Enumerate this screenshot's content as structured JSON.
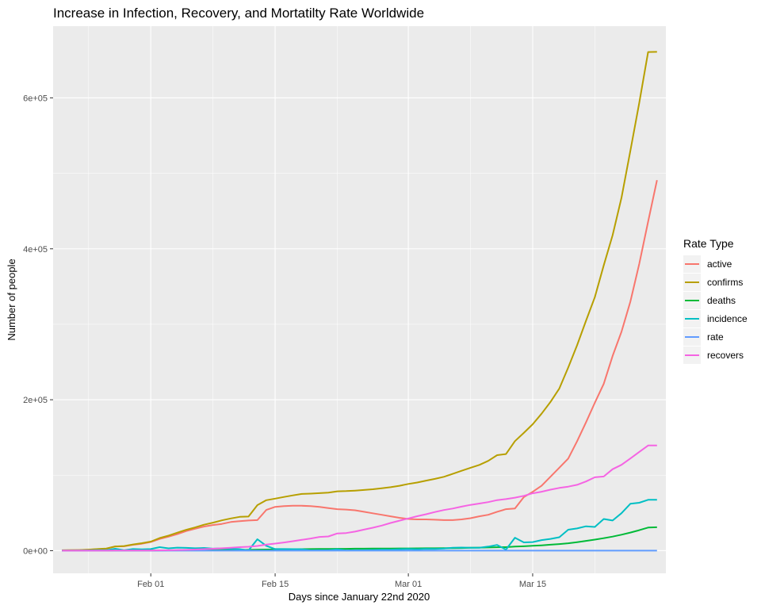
{
  "chart_data": {
    "type": "line",
    "title": "Increase in Infection, Recovery, and Mortatilty Rate Worldwide",
    "xlabel": "Days since January 22nd 2020",
    "ylabel": "Number of people",
    "x_dates": [
      "2020-01-22",
      "2020-01-23",
      "2020-01-24",
      "2020-01-25",
      "2020-01-26",
      "2020-01-27",
      "2020-01-28",
      "2020-01-29",
      "2020-01-30",
      "2020-01-31",
      "2020-02-01",
      "2020-02-02",
      "2020-02-03",
      "2020-02-04",
      "2020-02-05",
      "2020-02-06",
      "2020-02-07",
      "2020-02-08",
      "2020-02-09",
      "2020-02-10",
      "2020-02-11",
      "2020-02-12",
      "2020-02-13",
      "2020-02-14",
      "2020-02-15",
      "2020-02-16",
      "2020-02-17",
      "2020-02-18",
      "2020-02-19",
      "2020-02-20",
      "2020-02-21",
      "2020-02-22",
      "2020-02-23",
      "2020-02-24",
      "2020-02-25",
      "2020-02-26",
      "2020-02-27",
      "2020-02-28",
      "2020-02-29",
      "2020-03-01",
      "2020-03-02",
      "2020-03-03",
      "2020-03-04",
      "2020-03-05",
      "2020-03-06",
      "2020-03-07",
      "2020-03-08",
      "2020-03-09",
      "2020-03-10",
      "2020-03-11",
      "2020-03-12",
      "2020-03-13",
      "2020-03-14",
      "2020-03-15",
      "2020-03-16",
      "2020-03-17",
      "2020-03-18",
      "2020-03-19",
      "2020-03-20",
      "2020-03-21",
      "2020-03-22",
      "2020-03-23",
      "2020-03-24",
      "2020-03-25",
      "2020-03-26",
      "2020-03-27",
      "2020-03-28",
      "2020-03-29"
    ],
    "x_range": [
      "2020-01-21",
      "2020-03-30"
    ],
    "ylim": [
      -30000,
      695000
    ],
    "x_ticks": [
      {
        "date": "2020-02-01",
        "label": "Feb 01"
      },
      {
        "date": "2020-02-15",
        "label": "Feb 15"
      },
      {
        "date": "2020-03-01",
        "label": "Mar 01"
      },
      {
        "date": "2020-03-15",
        "label": "Mar 15"
      }
    ],
    "y_ticks": [
      {
        "value": 0,
        "label": "0e+00"
      },
      {
        "value": 200000,
        "label": "2e+05"
      },
      {
        "value": 400000,
        "label": "4e+05"
      },
      {
        "value": 600000,
        "label": "6e+05"
      }
    ],
    "grid": true,
    "legend": {
      "title": "Rate Type",
      "position": "right"
    },
    "series": [
      {
        "name": "active",
        "color": "#F8766D",
        "values": [
          500,
          600,
          850,
          1300,
          2000,
          2700,
          5600,
          5800,
          7800,
          9200,
          11500,
          15500,
          18500,
          22000,
          26000,
          29000,
          32000,
          34000,
          35500,
          38000,
          39000,
          40000,
          40500,
          54000,
          58000,
          59000,
          59500,
          59500,
          59000,
          58000,
          56500,
          55000,
          54500,
          53500,
          51500,
          49500,
          47500,
          45500,
          43500,
          42000,
          41500,
          41500,
          41000,
          40500,
          40500,
          41500,
          43000,
          45500,
          47500,
          51500,
          55000,
          56000,
          71000,
          78000,
          86000,
          98000,
          110000,
          122000,
          145000,
          170000,
          196000,
          221000,
          258000,
          290000,
          330000,
          380000,
          436000,
          491000
        ]
      },
      {
        "name": "confirms",
        "color": "#B79F00",
        "values": [
          560,
          650,
          940,
          1430,
          2120,
          2930,
          5580,
          6170,
          8230,
          9930,
          12040,
          16780,
          19880,
          23900,
          27640,
          30800,
          34400,
          37100,
          40150,
          42760,
          44800,
          45220,
          60370,
          66890,
          69030,
          71230,
          73260,
          75140,
          75640,
          76200,
          76840,
          78600,
          78990,
          79570,
          80410,
          81390,
          82750,
          84120,
          86010,
          88370,
          90310,
          92840,
          95120,
          97890,
          101800,
          105850,
          109800,
          113600,
          119000,
          126600,
          128000,
          145200,
          156100,
          167500,
          181500,
          197100,
          214900,
          242700,
          272200,
          304500,
          336000,
          378000,
          418000,
          467600,
          529800,
          593300,
          660700,
          661000
        ]
      },
      {
        "name": "deaths",
        "color": "#00BA38",
        "values": [
          17,
          18,
          26,
          42,
          56,
          82,
          131,
          133,
          171,
          213,
          259,
          362,
          426,
          492,
          564,
          634,
          719,
          806,
          906,
          1013,
          1113,
          1118,
          1371,
          1523,
          1666,
          1770,
          1868,
          2007,
          2122,
          2247,
          2251,
          2458,
          2469,
          2629,
          2708,
          2770,
          2814,
          2872,
          2941,
          2996,
          3085,
          3160,
          3254,
          3348,
          3460,
          3558,
          3803,
          3996,
          4262,
          4615,
          4720,
          5404,
          5819,
          6440,
          7126,
          7905,
          8733,
          9867,
          11299,
          12973,
          14623,
          16497,
          18615,
          21181,
          23970,
          27198,
          30652,
          31000
        ]
      },
      {
        "name": "incidence",
        "color": "#00BFC4",
        "values": [
          0,
          100,
          300,
          500,
          700,
          800,
          2600,
          600,
          2100,
          1700,
          2100,
          4700,
          3100,
          4000,
          3700,
          3200,
          3600,
          2700,
          3100,
          2600,
          2000,
          400,
          15200,
          6500,
          2100,
          2200,
          2000,
          1900,
          500,
          600,
          600,
          1800,
          400,
          600,
          800,
          1000,
          1400,
          1400,
          1900,
          2400,
          1900,
          2500,
          2300,
          2800,
          3900,
          4100,
          3900,
          3800,
          5400,
          7600,
          1400,
          17200,
          11000,
          11400,
          14000,
          15600,
          17800,
          27800,
          29500,
          32300,
          31500,
          42000,
          40000,
          49600,
          62200,
          63500,
          67400,
          67500
        ]
      },
      {
        "name": "rate",
        "color": "#619CFF",
        "values": [
          0,
          0,
          0,
          0,
          0,
          0,
          0,
          0,
          0,
          0,
          0,
          0,
          0,
          0,
          0,
          0,
          0,
          0,
          0,
          0,
          0,
          0,
          0,
          0,
          0,
          0,
          0,
          0,
          0,
          0,
          0,
          0,
          0,
          0,
          0,
          0,
          0,
          0,
          0,
          0,
          0,
          0,
          0,
          0,
          0,
          0,
          0,
          0,
          0,
          0,
          0,
          0,
          0,
          0,
          0,
          0,
          0,
          0,
          0,
          0,
          0,
          0,
          0,
          0,
          0,
          0,
          0,
          0
        ]
      },
      {
        "name": "recovers",
        "color": "#F564E3",
        "values": [
          28,
          30,
          36,
          39,
          52,
          61,
          107,
          126,
          143,
          222,
          284,
          472,
          623,
          852,
          1124,
          1487,
          2011,
          2616,
          3244,
          3946,
          4683,
          5150,
          6295,
          8058,
          9395,
          10865,
          12583,
          14352,
          16121,
          18177,
          18890,
          22886,
          23394,
          25227,
          27905,
          30384,
          33277,
          36711,
          39782,
          42716,
          45602,
          48229,
          51171,
          53797,
          55866,
          58359,
          60694,
          62494,
          64404,
          67003,
          68324,
          70251,
          72624,
          76034,
          78088,
          80840,
          83207,
          84854,
          87256,
          91675,
          97243,
          98334,
          107991,
          113770,
          122150,
          130915,
          139415,
          139500
        ]
      }
    ]
  }
}
